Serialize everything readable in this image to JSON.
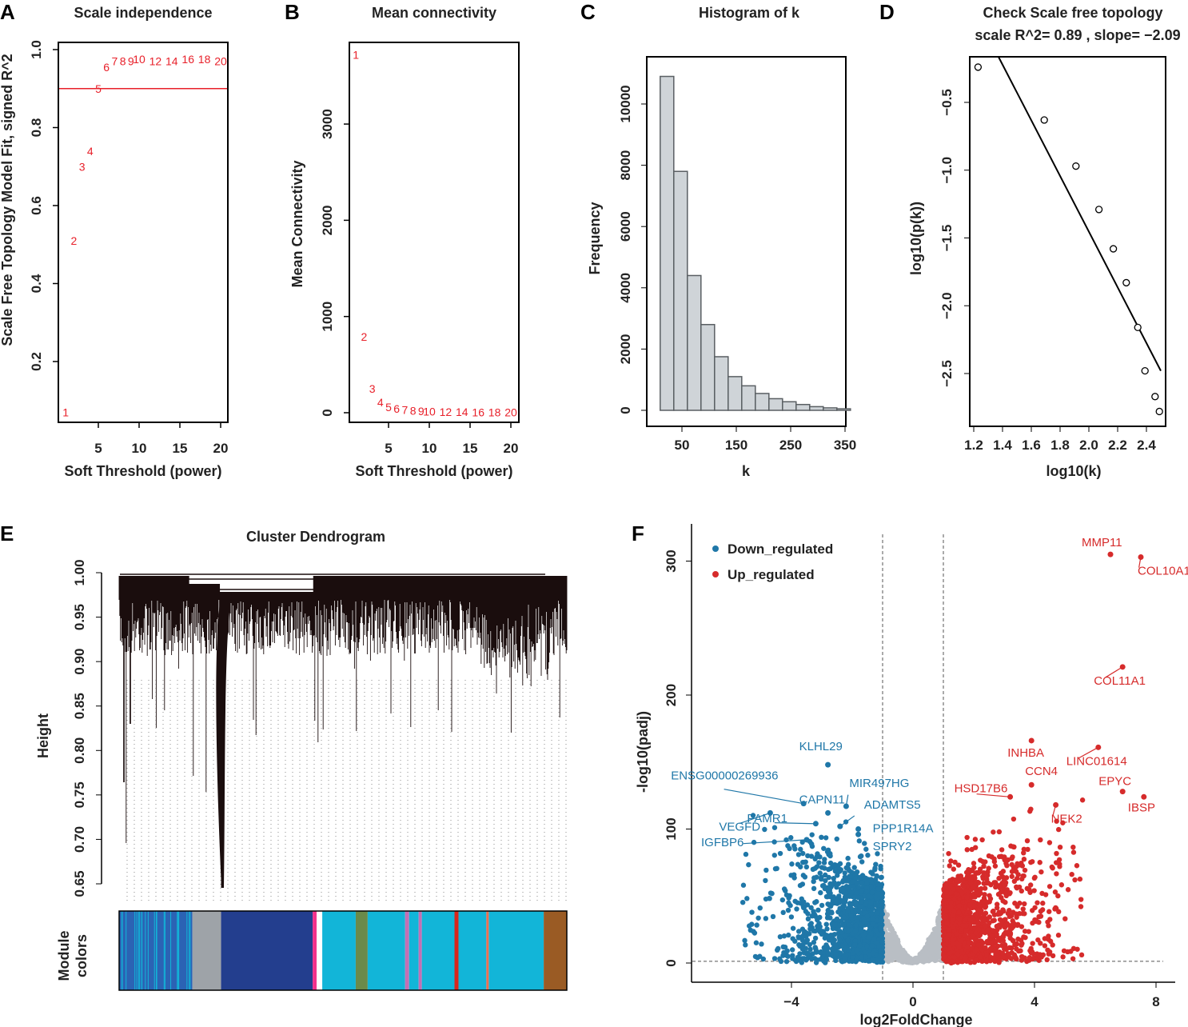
{
  "panels": {
    "A": "A",
    "B": "B",
    "C": "C",
    "D": "D",
    "E": "E",
    "F": "F"
  },
  "chart_data": [
    {
      "id": "A",
      "type": "scatter",
      "title": "Scale independence",
      "xlabel": "Soft Threshold (power)",
      "ylabel": "Scale Free Topology Model Fit, signed R^2",
      "x": [
        1,
        2,
        3,
        4,
        5,
        6,
        7,
        8,
        9,
        10,
        12,
        14,
        16,
        18,
        20
      ],
      "y": [
        0.07,
        0.51,
        0.7,
        0.74,
        0.9,
        0.955,
        0.97,
        0.97,
        0.97,
        0.975,
        0.97,
        0.97,
        0.975,
        0.975,
        0.97
      ],
      "hline": 0.9,
      "xticks": [
        5,
        10,
        15,
        20
      ],
      "yticks": [
        0.2,
        0.4,
        0.6,
        0.8,
        1.0
      ],
      "color": "#e8202a"
    },
    {
      "id": "B",
      "type": "scatter",
      "title": "Mean connectivity",
      "xlabel": "Soft Threshold (power)",
      "ylabel": "Mean Connectivity",
      "x": [
        1,
        2,
        3,
        4,
        5,
        6,
        7,
        8,
        9,
        10,
        12,
        14,
        16,
        18,
        20
      ],
      "y": [
        3720,
        790,
        250,
        110,
        60,
        40,
        30,
        22,
        18,
        14,
        10,
        8,
        6,
        5,
        5
      ],
      "xticks": [
        5,
        10,
        15,
        20
      ],
      "yticks": [
        0,
        1000,
        2000,
        3000
      ],
      "color": "#e8202a"
    },
    {
      "id": "C",
      "type": "bar",
      "title": "Histogram of k",
      "xlabel": "k",
      "ylabel": "Frequency",
      "bin_width": 25,
      "bin_starts": [
        0,
        25,
        50,
        75,
        100,
        125,
        150,
        175,
        200,
        225,
        250,
        275,
        300,
        325
      ],
      "values": [
        10900,
        7800,
        4400,
        2800,
        1750,
        1100,
        800,
        550,
        380,
        280,
        190,
        120,
        80,
        50
      ],
      "xticks": [
        50,
        150,
        250,
        350
      ],
      "yticks": [
        0,
        2000,
        4000,
        6000,
        8000,
        10000
      ]
    },
    {
      "id": "D",
      "type": "scatter",
      "title": "Check Scale free topology",
      "subtitle": "scale R^2= 0.89 , slope= −2.09",
      "xlabel": "log10(k)",
      "ylabel": "log10(p(k))",
      "x": [
        1.23,
        1.69,
        1.91,
        2.07,
        2.17,
        2.26,
        2.34,
        2.39,
        2.46,
        2.49
      ],
      "y": [
        -0.24,
        -0.63,
        -0.97,
        -1.29,
        -1.58,
        -1.83,
        -2.16,
        -2.48,
        -2.67,
        -2.78
      ],
      "fit_line": {
        "x": [
          1.37,
          2.5
        ],
        "y": [
          -0.16,
          -2.48
        ]
      },
      "xticks": [
        "1.2",
        "1.4",
        "1.6",
        "1.8",
        "2.0",
        "2.2",
        "2.4"
      ],
      "yticks": [
        "-0.5",
        "-1.0",
        "-1.5",
        "-2.0",
        "-2.5"
      ]
    },
    {
      "id": "E",
      "type": "dendrogram",
      "title": "Cluster Dendrogram",
      "ylabel": "Height",
      "color_bar_label": [
        "Module",
        "colors"
      ],
      "yticks": [
        "0.65",
        "0.70",
        "0.75",
        "0.80",
        "0.85",
        "0.90",
        "0.95",
        "1.00"
      ],
      "modules": [
        {
          "color": "#2b63b4",
          "size": 92
        },
        {
          "color": "#9ea3a8",
          "size": 36
        },
        {
          "color": "#233e8e",
          "size": 115
        },
        {
          "color": "#f2318c",
          "size": 5
        },
        {
          "color": "#ffffff",
          "size": 7
        },
        {
          "color": "#12b5d8",
          "size": 42
        },
        {
          "color": "#6a8a4a",
          "size": 15
        },
        {
          "color": "#12b5d8",
          "size": 47
        },
        {
          "color": "#c46fb4",
          "size": 5
        },
        {
          "color": "#12b5d8",
          "size": 12
        },
        {
          "color": "#c46fb4",
          "size": 4
        },
        {
          "color": "#12b5d8",
          "size": 41
        },
        {
          "color": "#d9261c",
          "size": 5
        },
        {
          "color": "#12b5d8",
          "size": 35
        },
        {
          "color": "#f06e4e",
          "size": 3
        },
        {
          "color": "#12b5d8",
          "size": 69
        },
        {
          "color": "#9a5b24",
          "size": 29
        }
      ]
    },
    {
      "id": "F",
      "type": "scatter",
      "title": "",
      "xlabel": "log2FoldChange",
      "ylabel": "-log10(padj)",
      "xticks": [
        -4,
        0,
        4,
        8
      ],
      "yticks": [
        0,
        100,
        200,
        300
      ],
      "fc_threshold": [
        -1,
        1
      ],
      "padj_line": 1.3,
      "legend": [
        {
          "name": "Down_regulated",
          "color": "#1f77a8"
        },
        {
          "name": "Up_regulated",
          "color": "#d62b2b"
        }
      ],
      "legend_position": "top-left",
      "labeled_genes": [
        {
          "name": "MMP11",
          "x": 6.5,
          "y": 305,
          "group": "up"
        },
        {
          "name": "COL10A1",
          "x": 7.5,
          "y": 303,
          "group": "up"
        },
        {
          "name": "COL11A1",
          "x": 6.9,
          "y": 221,
          "group": "up"
        },
        {
          "name": "INHBA",
          "x": 3.9,
          "y": 166,
          "group": "up"
        },
        {
          "name": "LINC01614",
          "x": 6.1,
          "y": 161,
          "group": "up"
        },
        {
          "name": "CCN4",
          "x": 3.9,
          "y": 133,
          "group": "up"
        },
        {
          "name": "HSD17B6",
          "x": 3.2,
          "y": 124,
          "group": "up"
        },
        {
          "name": "NEK2",
          "x": 4.7,
          "y": 118,
          "group": "up"
        },
        {
          "name": "EPYC",
          "x": 6.9,
          "y": 128,
          "group": "up"
        },
        {
          "name": "IBSP",
          "x": 7.6,
          "y": 124,
          "group": "up"
        },
        {
          "name": "KLHL29",
          "x": -2.8,
          "y": 148,
          "group": "down"
        },
        {
          "name": "ENSG00000269936",
          "x": -3.6,
          "y": 119,
          "group": "down"
        },
        {
          "name": "CAPN11",
          "x": -2.8,
          "y": 112,
          "group": "down"
        },
        {
          "name": "MIR497HG",
          "x": -2.2,
          "y": 117,
          "group": "down"
        },
        {
          "name": "PAMR1",
          "x": -3.2,
          "y": 104,
          "group": "down"
        },
        {
          "name": "ADAMTS5",
          "x": -2.4,
          "y": 102,
          "group": "down"
        },
        {
          "name": "VEGFD",
          "x": -4.7,
          "y": 112,
          "group": "down"
        },
        {
          "name": "PPP1R14A",
          "x": -1.8,
          "y": 100,
          "group": "down"
        },
        {
          "name": "SPRY2",
          "x": -1.8,
          "y": 96,
          "group": "down"
        },
        {
          "name": "IGFBP6",
          "x": -3.5,
          "y": 92,
          "group": "down"
        }
      ]
    }
  ]
}
